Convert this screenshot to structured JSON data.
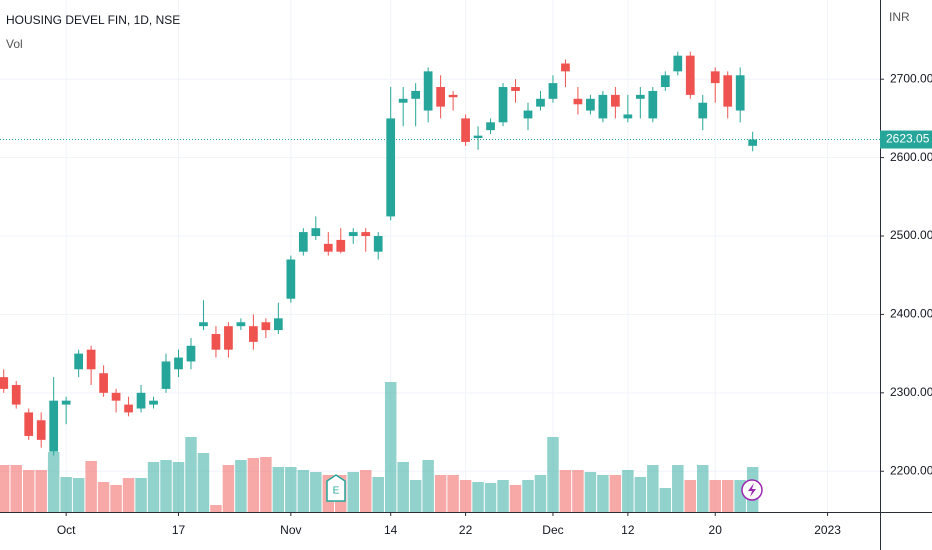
{
  "chart_data": {
    "type": "candlestick",
    "title": "HOUSING DEVEL FIN, 1D, NSE",
    "volume_label": "Vol",
    "currency": "INR",
    "last_price_label": "2623.05",
    "up_color": "#26a69a",
    "down_color": "#ef5350",
    "x": [
      0,
      1,
      2,
      3,
      4,
      5,
      6,
      7,
      8,
      9,
      10,
      11,
      12,
      13,
      14,
      15,
      16,
      17,
      18,
      19,
      20,
      21,
      22,
      23,
      24,
      25,
      26,
      27,
      28,
      29,
      30,
      31,
      32,
      33,
      34,
      35,
      36,
      37,
      38,
      39,
      40,
      41,
      42,
      43,
      44,
      45,
      46,
      47,
      48,
      49,
      50,
      51,
      52,
      53,
      54,
      55,
      56,
      57,
      58,
      59,
      60
    ],
    "open": [
      2320,
      2310,
      2275,
      2265,
      2225,
      2285,
      2330,
      2355,
      2325,
      2300,
      2285,
      2280,
      2285,
      2305,
      2330,
      2340,
      2385,
      2375,
      2385,
      2385,
      2385,
      2390,
      2380,
      2420,
      2480,
      2500,
      2490,
      2495,
      2500,
      2505,
      2480,
      2525,
      2670,
      2675,
      2660,
      2690,
      2680,
      2650,
      2625,
      2635,
      2645,
      2690,
      2650,
      2665,
      2675,
      2720,
      2675,
      2660,
      2650,
      2680,
      2650,
      2675,
      2650,
      2690,
      2710,
      2730,
      2650,
      2710,
      2705,
      2660,
      2615
    ],
    "high": [
      2330,
      2315,
      2280,
      2275,
      2320,
      2295,
      2355,
      2360,
      2335,
      2305,
      2295,
      2310,
      2295,
      2350,
      2355,
      2370,
      2418,
      2385,
      2390,
      2395,
      2400,
      2395,
      2415,
      2475,
      2510,
      2525,
      2505,
      2510,
      2510,
      2510,
      2505,
      2690,
      2690,
      2695,
      2715,
      2705,
      2685,
      2655,
      2640,
      2650,
      2695,
      2700,
      2670,
      2685,
      2705,
      2725,
      2690,
      2680,
      2685,
      2690,
      2680,
      2690,
      2690,
      2710,
      2735,
      2735,
      2680,
      2715,
      2710,
      2715,
      2633
    ],
    "low": [
      2300,
      2280,
      2240,
      2230,
      2220,
      2260,
      2320,
      2310,
      2295,
      2275,
      2270,
      2275,
      2280,
      2300,
      2320,
      2330,
      2380,
      2345,
      2345,
      2380,
      2355,
      2370,
      2375,
      2415,
      2475,
      2495,
      2475,
      2478,
      2490,
      2480,
      2470,
      2520,
      2640,
      2640,
      2645,
      2650,
      2660,
      2615,
      2610,
      2630,
      2640,
      2670,
      2635,
      2660,
      2670,
      2690,
      2655,
      2655,
      2645,
      2650,
      2645,
      2650,
      2645,
      2685,
      2705,
      2675,
      2635,
      2670,
      2650,
      2645,
      2608
    ],
    "close": [
      2305,
      2285,
      2245,
      2240,
      2290,
      2290,
      2350,
      2330,
      2300,
      2290,
      2275,
      2300,
      2290,
      2340,
      2345,
      2360,
      2390,
      2355,
      2355,
      2390,
      2365,
      2380,
      2395,
      2470,
      2505,
      2510,
      2480,
      2480,
      2505,
      2500,
      2500,
      2650,
      2675,
      2685,
      2710,
      2665,
      2677,
      2620,
      2628,
      2645,
      2690,
      2685,
      2660,
      2675,
      2695,
      2710,
      2668,
      2675,
      2680,
      2665,
      2655,
      2680,
      2685,
      2705,
      2730,
      2680,
      2670,
      2695,
      2665,
      2705,
      2623.05
    ],
    "volume": [
      4.7,
      4.7,
      4.2,
      4.2,
      6.0,
      3.5,
      3.4,
      5.1,
      3.0,
      2.7,
      3.4,
      3.4,
      5.0,
      5.2,
      5.0,
      7.5,
      5.9,
      0.7,
      4.7,
      5.2,
      5.4,
      5.5,
      4.5,
      4.5,
      4.2,
      4.0,
      3.7,
      3.7,
      4.0,
      4.2,
      3.5,
      13.0,
      5.0,
      3.2,
      5.2,
      3.7,
      3.7,
      3.2,
      3.0,
      2.9,
      3.2,
      2.7,
      3.2,
      3.7,
      7.5,
      4.2,
      4.2,
      4.0,
      3.7,
      3.7,
      4.2,
      3.5,
      4.7,
      2.4,
      4.7,
      3.2,
      4.7,
      3.2,
      3.2,
      3.2,
      4.5
    ],
    "xlim": [
      -0.3,
      70.2
    ],
    "xticks": [
      {
        "value": 5,
        "label": "Oct"
      },
      {
        "value": 14,
        "label": "17"
      },
      {
        "value": 23,
        "label": "Nov"
      },
      {
        "value": 31,
        "label": "14"
      },
      {
        "value": 37,
        "label": "22"
      },
      {
        "value": 44,
        "label": "Dec"
      },
      {
        "value": 50,
        "label": "12"
      },
      {
        "value": 57,
        "label": "20"
      },
      {
        "value": 66,
        "label": "2023"
      }
    ],
    "ylim": [
      2148,
      2801
    ],
    "yticks": [
      {
        "value": 2200,
        "label": "2200.00"
      },
      {
        "value": 2300,
        "label": "2300.00"
      },
      {
        "value": 2400,
        "label": "2400.00"
      },
      {
        "value": 2500,
        "label": "2500.00"
      },
      {
        "value": 2600,
        "label": "2600.00"
      },
      {
        "value": 2700,
        "label": "2700.00"
      }
    ],
    "grid": true
  }
}
